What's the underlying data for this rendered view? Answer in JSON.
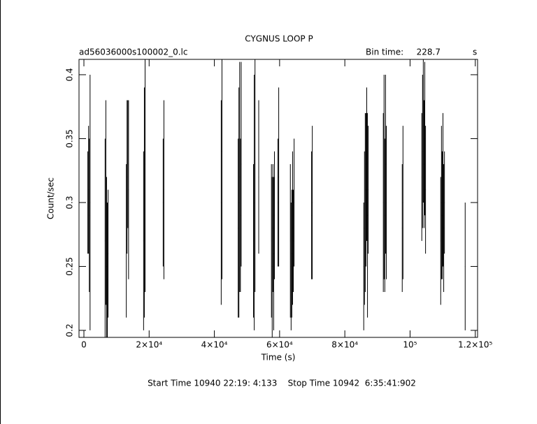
{
  "chart_data": {
    "type": "errorbar",
    "title": "CYGNUS LOOP P",
    "subtitle": "ad56036000s100002_0.lc",
    "bin_time_label": "Bin time:",
    "bin_time": 228.7,
    "bin_time_unit": "s",
    "xlabel": "Time (s)",
    "ylabel": "Count/sec",
    "footer": "Start Time 10940 22:19: 4:133    Stop Time 10942  6:35:41:902",
    "xlim": [
      -1500,
      120700
    ],
    "ylim": [
      0.1945,
      0.412
    ],
    "xticks": [
      0,
      {
        "value": 20000,
        "label": "2×10⁴"
      },
      {
        "value": 40000,
        "label": "4×10⁴"
      },
      {
        "value": 60000,
        "label": "6×10⁴"
      },
      {
        "value": 80000,
        "label": "8×10⁴"
      },
      {
        "value": 100000,
        "label": "10⁵"
      },
      {
        "value": 120000,
        "label": "1.2×10⁵"
      }
    ],
    "yticks": [
      0.2,
      0.25,
      0.3,
      0.35,
      0.4
    ],
    "color": "#000000",
    "x": [
      1200,
      1430,
      1660,
      1890,
      6500,
      6730,
      6960,
      7190,
      7420,
      13000,
      13230,
      13460,
      13690,
      18300,
      18530,
      18760,
      24300,
      24530,
      42100,
      42330,
      47300,
      47530,
      47760,
      47990,
      48220,
      52000,
      52230,
      52460,
      53600,
      57500,
      57730,
      57960,
      58190,
      58420,
      59500,
      59730,
      63300,
      63530,
      63760,
      63990,
      64220,
      64450,
      69800,
      70030,
      85800,
      86030,
      86260,
      86490,
      86720,
      86950,
      87180,
      91800,
      92030,
      92260,
      92490,
      92720,
      97600,
      97830,
      103600,
      103830,
      104060,
      104290,
      104520,
      104750,
      109400,
      109630,
      109860,
      110090,
      110320,
      110550,
      116900
    ],
    "values": [
      0.3,
      0.31,
      0.29,
      0.3,
      0.27,
      0.3,
      0.25,
      0.24,
      0.26,
      0.27,
      0.32,
      0.33,
      0.31,
      0.27,
      0.3,
      0.33,
      0.3,
      0.31,
      0.3,
      0.34,
      0.28,
      0.3,
      0.32,
      0.29,
      0.33,
      0.27,
      0.3,
      0.33,
      0.32,
      0.27,
      0.25,
      0.28,
      0.26,
      0.29,
      0.3,
      0.32,
      0.27,
      0.25,
      0.26,
      0.28,
      0.27,
      0.3,
      0.29,
      0.3,
      0.25,
      0.28,
      0.3,
      0.31,
      0.33,
      0.29,
      0.31,
      0.3,
      0.32,
      0.29,
      0.33,
      0.3,
      0.28,
      0.3,
      0.32,
      0.34,
      0.36,
      0.33,
      0.35,
      0.31,
      0.27,
      0.3,
      0.29,
      0.31,
      0.28,
      0.3,
      0.25
    ],
    "errors": [
      0.04,
      0.05,
      0.06,
      0.1,
      0.08,
      0.08,
      0.07,
      0.06,
      0.05,
      0.06,
      0.06,
      0.05,
      0.07,
      0.07,
      0.09,
      0.1,
      0.05,
      0.07,
      0.08,
      0.1,
      0.07,
      0.09,
      0.09,
      0.06,
      0.08,
      0.06,
      0.1,
      0.1,
      0.06,
      0.06,
      0.07,
      0.05,
      0.06,
      0.05,
      0.05,
      0.07,
      0.06,
      0.05,
      0.05,
      0.06,
      0.04,
      0.05,
      0.05,
      0.06,
      0.05,
      0.06,
      0.07,
      0.06,
      0.06,
      0.08,
      0.05,
      0.07,
      0.08,
      0.06,
      0.07,
      0.06,
      0.05,
      0.06,
      0.05,
      0.06,
      0.06,
      0.05,
      0.06,
      0.05,
      0.05,
      0.06,
      0.05,
      0.06,
      0.05,
      0.04,
      0.05
    ]
  }
}
